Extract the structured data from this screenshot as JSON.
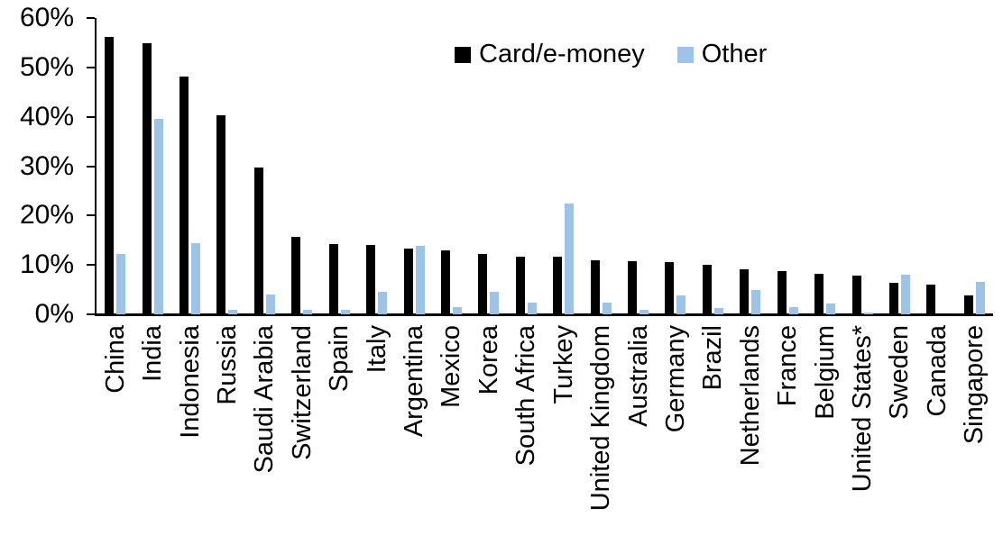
{
  "chart_data": {
    "type": "bar",
    "title": "",
    "xlabel": "",
    "ylabel": "",
    "ylim": [
      0,
      60
    ],
    "y_tick_step": 10,
    "y_tick_labels": [
      "0%",
      "10%",
      "20%",
      "30%",
      "40%",
      "50%",
      "60%"
    ],
    "grid": false,
    "legend_position": "top-center",
    "categories": [
      "China",
      "India",
      "Indonesia",
      "Russia",
      "Saudi Arabia",
      "Switzerland",
      "Spain",
      "Italy",
      "Argentina",
      "Mexico",
      "Korea",
      "South Africa",
      "Turkey",
      "United Kingdom",
      "Australia",
      "Germany",
      "Brazil",
      "Netherlands",
      "France",
      "Belgium",
      "United States*",
      "Sweden",
      "Canada",
      "Singapore"
    ],
    "series": [
      {
        "name": "Card/e-money",
        "color": "#000000",
        "values": [
          56.2,
          54.9,
          48.2,
          40.3,
          29.7,
          15.6,
          14.2,
          14.1,
          13.3,
          12.9,
          12.2,
          11.7,
          11.6,
          11.0,
          10.8,
          10.6,
          10.0,
          9.2,
          8.7,
          8.2,
          7.8,
          6.4,
          6.0,
          3.9
        ]
      },
      {
        "name": "Other",
        "color": "#9DC3E6",
        "values": [
          12.3,
          39.6,
          14.4,
          1.0,
          4.0,
          1.0,
          1.0,
          4.6,
          13.9,
          1.4,
          4.6,
          2.4,
          22.5,
          2.4,
          1.0,
          3.8,
          1.2,
          4.9,
          1.5,
          2.1,
          0.4,
          8.0,
          0.0,
          6.6
        ]
      }
    ],
    "colors": {
      "axis": "#000000",
      "text": "#000000",
      "background": "#FFFFFF"
    }
  }
}
